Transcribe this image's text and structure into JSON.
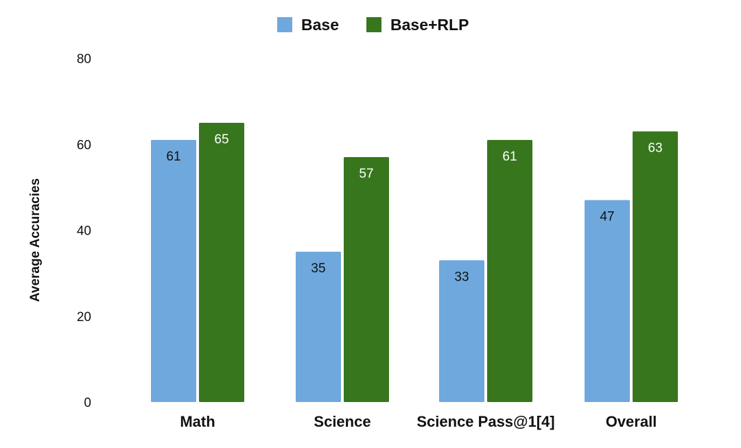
{
  "chart_data": {
    "type": "bar",
    "categories": [
      "Math",
      "Science",
      "Science Pass@1[4]",
      "Overall"
    ],
    "series": [
      {
        "name": "Base",
        "values": [
          61,
          35,
          33,
          47
        ],
        "color": "#6fa8dc",
        "label_color": "#111111"
      },
      {
        "name": "Base+RLP",
        "values": [
          65,
          57,
          61,
          63
        ],
        "color": "#38761d",
        "label_color": "#ffffff"
      }
    ],
    "xlabel": "",
    "ylabel": "Average Accuracies",
    "ylim": [
      0,
      80
    ],
    "yticks": [
      0,
      20,
      40,
      60,
      80
    ],
    "grid": false,
    "legend": "top-center"
  }
}
